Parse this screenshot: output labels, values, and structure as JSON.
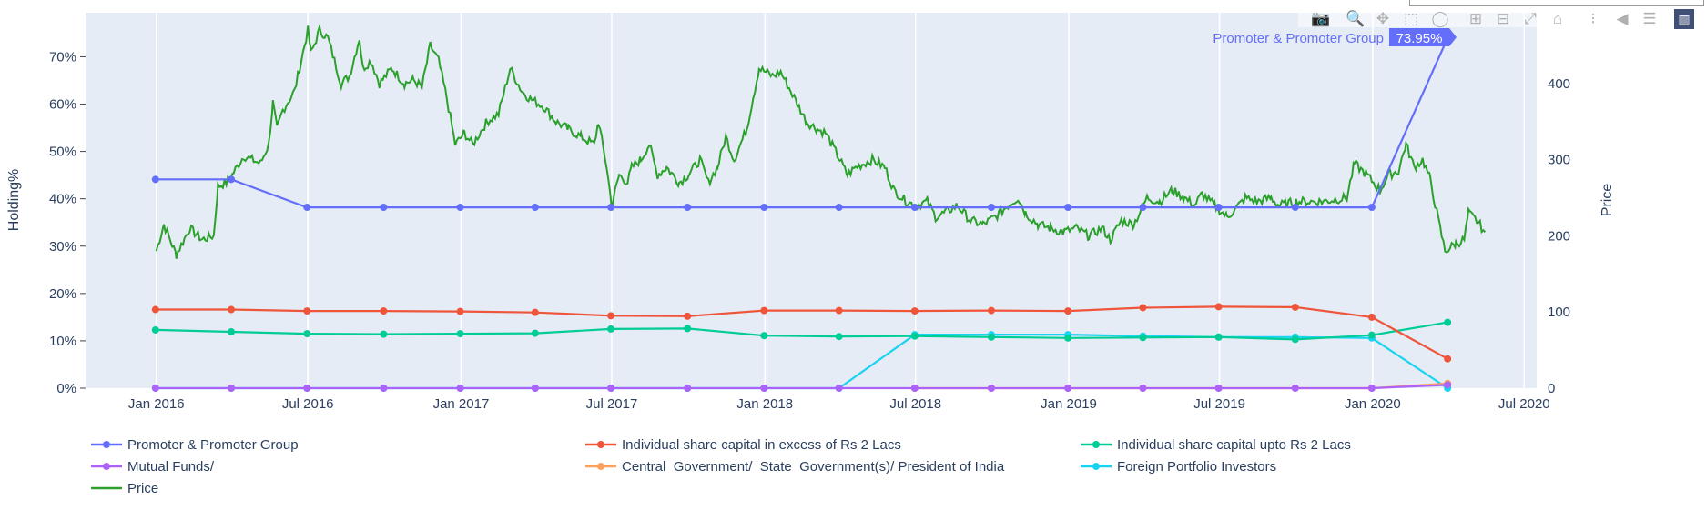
{
  "modebar": {
    "icons": [
      "camera-icon",
      "zoom-icon",
      "pan-icon",
      "box-select-icon",
      "lasso-icon",
      "zoom-in-icon",
      "zoom-out-icon",
      "autoscale-icon",
      "reset-axes-icon",
      "spike-lines-icon",
      "hover-closest-icon",
      "hover-compare-icon",
      "plotly-logo-icon"
    ]
  },
  "hover": {
    "name": "Promoter & Promoter Group",
    "value": "73.95%",
    "color": "#636efa"
  },
  "chart_data": {
    "type": "line",
    "x_quarters": [
      "2015-12-31",
      "2016-03-31",
      "2016-06-30",
      "2016-09-30",
      "2016-12-31",
      "2017-03-31",
      "2017-06-30",
      "2017-09-30",
      "2017-12-31",
      "2018-03-31",
      "2018-06-30",
      "2018-09-30",
      "2018-12-31",
      "2019-03-31",
      "2019-06-30",
      "2019-09-30",
      "2019-12-31",
      "2020-03-31"
    ],
    "xaxis": {
      "ticks": [
        "2016-01-01",
        "2016-07-01",
        "2017-01-01",
        "2017-07-01",
        "2018-01-01",
        "2018-07-01",
        "2019-01-01",
        "2019-07-01",
        "2020-01-01",
        "2020-07-01"
      ],
      "tick_labels": [
        "Jan 2016",
        "Jul 2016",
        "Jan 2017",
        "Jul 2017",
        "Jan 2018",
        "Jul 2018",
        "Jan 2019",
        "Jul 2019",
        "Jan 2020",
        "Jul 2020"
      ],
      "range": [
        "2015-10-08",
        "2020-07-16"
      ]
    },
    "yaxis": {
      "title": "Holding%",
      "range": [
        0,
        79.3
      ],
      "ticks": [
        0,
        10,
        20,
        30,
        40,
        50,
        60,
        70
      ],
      "tick_labels": [
        "0%",
        "10%",
        "20%",
        "30%",
        "40%",
        "50%",
        "60%",
        "70%"
      ]
    },
    "yaxis2": {
      "title": "Price",
      "range": [
        0,
        493
      ],
      "ticks": [
        0,
        100,
        200,
        300,
        400
      ],
      "tick_labels": [
        "0",
        "100",
        "200",
        "300",
        "400"
      ]
    },
    "grid": true,
    "legend_placement": "bottom",
    "series": [
      {
        "name": "Promoter & Promoter Group",
        "color": "#636efa",
        "axis": "y",
        "values": [
          44.1,
          44.1,
          38.2,
          38.2,
          38.2,
          38.2,
          38.2,
          38.2,
          38.2,
          38.2,
          38.2,
          38.2,
          38.2,
          38.2,
          38.2,
          38.2,
          38.2,
          73.95
        ]
      },
      {
        "name": "Individual share capital in excess of Rs 2 Lacs",
        "color": "#ef553b",
        "axis": "y",
        "values": [
          16.6,
          16.6,
          16.3,
          16.3,
          16.2,
          16.0,
          15.3,
          15.2,
          16.4,
          16.4,
          16.3,
          16.4,
          16.3,
          17.0,
          17.2,
          17.1,
          15.0,
          6.2
        ]
      },
      {
        "name": "Individual share capital upto Rs 2 Lacs",
        "color": "#00cc96",
        "axis": "y",
        "values": [
          12.3,
          11.9,
          11.5,
          11.4,
          11.5,
          11.6,
          12.5,
          12.6,
          11.1,
          10.9,
          11.0,
          10.8,
          10.6,
          10.7,
          10.8,
          10.3,
          11.2,
          13.9
        ]
      },
      {
        "name": "Mutual Funds/",
        "color": "#ab63fa",
        "axis": "y",
        "values": [
          0,
          0,
          0,
          0,
          0,
          0,
          0,
          0,
          0,
          0,
          0,
          0,
          0,
          0,
          0,
          0,
          0,
          0.7
        ]
      },
      {
        "name": "Central  Government/  State  Government(s)/ President of India",
        "color": "#ffa15a",
        "axis": "y",
        "values": [
          null,
          null,
          null,
          null,
          null,
          null,
          null,
          null,
          null,
          null,
          0,
          0,
          0,
          0,
          0,
          0,
          0,
          1.0
        ]
      },
      {
        "name": "Foreign Portfolio Investors",
        "color": "#19d3f3",
        "axis": "y",
        "values": [
          0,
          0,
          0,
          0,
          0,
          0,
          0,
          0,
          0,
          0,
          11.3,
          11.3,
          11.3,
          11.0,
          10.8,
          10.8,
          10.6,
          0
        ]
      }
    ],
    "price": {
      "name": "Price",
      "color": "#2ca02c",
      "axis": "y2",
      "points": [
        [
          "2016-01-01",
          180
        ],
        [
          "2016-01-10",
          215
        ],
        [
          "2016-01-25",
          175
        ],
        [
          "2016-02-10",
          210
        ],
        [
          "2016-02-25",
          195
        ],
        [
          "2016-03-10",
          200
        ],
        [
          "2016-03-15",
          265
        ],
        [
          "2016-03-25",
          270
        ],
        [
          "2016-04-01",
          280
        ],
        [
          "2016-04-15",
          305
        ],
        [
          "2016-04-25",
          300
        ],
        [
          "2016-05-05",
          295
        ],
        [
          "2016-05-15",
          320
        ],
        [
          "2016-05-20",
          375
        ],
        [
          "2016-05-25",
          340
        ],
        [
          "2016-06-01",
          365
        ],
        [
          "2016-06-15",
          390
        ],
        [
          "2016-06-25",
          440
        ],
        [
          "2016-07-01",
          470
        ],
        [
          "2016-07-05",
          440
        ],
        [
          "2016-07-15",
          470
        ],
        [
          "2016-07-25",
          460
        ],
        [
          "2016-08-10",
          400
        ],
        [
          "2016-08-20",
          410
        ],
        [
          "2016-09-01",
          460
        ],
        [
          "2016-09-05",
          420
        ],
        [
          "2016-09-15",
          430
        ],
        [
          "2016-09-25",
          400
        ],
        [
          "2016-10-10",
          420
        ],
        [
          "2016-10-25",
          400
        ],
        [
          "2016-11-05",
          405
        ],
        [
          "2016-11-15",
          395
        ],
        [
          "2016-11-25",
          450
        ],
        [
          "2016-12-05",
          430
        ],
        [
          "2016-12-15",
          380
        ],
        [
          "2016-12-25",
          320
        ],
        [
          "2017-01-05",
          335
        ],
        [
          "2017-01-15",
          320
        ],
        [
          "2017-02-01",
          350
        ],
        [
          "2017-02-15",
          360
        ],
        [
          "2017-03-01",
          420
        ],
        [
          "2017-03-15",
          390
        ],
        [
          "2017-03-25",
          380
        ],
        [
          "2017-04-10",
          370
        ],
        [
          "2017-04-25",
          350
        ],
        [
          "2017-05-10",
          340
        ],
        [
          "2017-05-25",
          330
        ],
        [
          "2017-06-10",
          320
        ],
        [
          "2017-06-15",
          350
        ],
        [
          "2017-06-25",
          290
        ],
        [
          "2017-07-01",
          240
        ],
        [
          "2017-07-10",
          280
        ],
        [
          "2017-07-20",
          270
        ],
        [
          "2017-07-25",
          290
        ],
        [
          "2017-08-05",
          300
        ],
        [
          "2017-08-15",
          320
        ],
        [
          "2017-08-25",
          280
        ],
        [
          "2017-09-05",
          290
        ],
        [
          "2017-09-20",
          270
        ],
        [
          "2017-10-01",
          280
        ],
        [
          "2017-10-15",
          300
        ],
        [
          "2017-10-25",
          270
        ],
        [
          "2017-11-05",
          290
        ],
        [
          "2017-11-15",
          330
        ],
        [
          "2017-11-25",
          300
        ],
        [
          "2017-12-10",
          340
        ],
        [
          "2017-12-25",
          420
        ],
        [
          "2018-01-10",
          410
        ],
        [
          "2018-01-20",
          415
        ],
        [
          "2018-02-01",
          390
        ],
        [
          "2018-02-20",
          350
        ],
        [
          "2018-03-05",
          340
        ],
        [
          "2018-03-15",
          335
        ],
        [
          "2018-04-01",
          300
        ],
        [
          "2018-04-10",
          280
        ],
        [
          "2018-04-20",
          290
        ],
        [
          "2018-05-10",
          300
        ],
        [
          "2018-05-25",
          290
        ],
        [
          "2018-06-05",
          260
        ],
        [
          "2018-06-20",
          245
        ],
        [
          "2018-07-01",
          240
        ],
        [
          "2018-07-15",
          245
        ],
        [
          "2018-07-25",
          225
        ],
        [
          "2018-08-05",
          230
        ],
        [
          "2018-08-20",
          240
        ],
        [
          "2018-09-05",
          220
        ],
        [
          "2018-09-20",
          215
        ],
        [
          "2018-10-05",
          225
        ],
        [
          "2018-10-20",
          240
        ],
        [
          "2018-11-01",
          250
        ],
        [
          "2018-11-10",
          230
        ],
        [
          "2018-11-25",
          215
        ],
        [
          "2018-12-10",
          210
        ],
        [
          "2018-12-25",
          205
        ],
        [
          "2019-01-10",
          210
        ],
        [
          "2019-01-25",
          200
        ],
        [
          "2019-02-10",
          210
        ],
        [
          "2019-02-20",
          195
        ],
        [
          "2019-03-05",
          220
        ],
        [
          "2019-03-20",
          215
        ],
        [
          "2019-04-05",
          250
        ],
        [
          "2019-04-20",
          245
        ],
        [
          "2019-05-05",
          260
        ],
        [
          "2019-05-20",
          250
        ],
        [
          "2019-06-01",
          240
        ],
        [
          "2019-06-10",
          255
        ],
        [
          "2019-06-25",
          240
        ],
        [
          "2019-07-10",
          225
        ],
        [
          "2019-07-20",
          235
        ],
        [
          "2019-08-01",
          250
        ],
        [
          "2019-08-15",
          245
        ],
        [
          "2019-09-01",
          250
        ],
        [
          "2019-09-10",
          240
        ],
        [
          "2019-10-01",
          245
        ],
        [
          "2019-11-01",
          245
        ],
        [
          "2019-12-01",
          250
        ],
        [
          "2019-12-10",
          295
        ],
        [
          "2019-12-25",
          280
        ],
        [
          "2020-01-10",
          260
        ],
        [
          "2020-01-20",
          280
        ],
        [
          "2020-02-01",
          285
        ],
        [
          "2020-02-10",
          320
        ],
        [
          "2020-02-20",
          290
        ],
        [
          "2020-03-01",
          300
        ],
        [
          "2020-03-10",
          275
        ],
        [
          "2020-03-20",
          220
        ],
        [
          "2020-03-28",
          180
        ],
        [
          "2020-04-10",
          190
        ],
        [
          "2020-04-20",
          195
        ],
        [
          "2020-04-25",
          230
        ],
        [
          "2020-05-05",
          220
        ],
        [
          "2020-05-15",
          205
        ]
      ]
    }
  }
}
